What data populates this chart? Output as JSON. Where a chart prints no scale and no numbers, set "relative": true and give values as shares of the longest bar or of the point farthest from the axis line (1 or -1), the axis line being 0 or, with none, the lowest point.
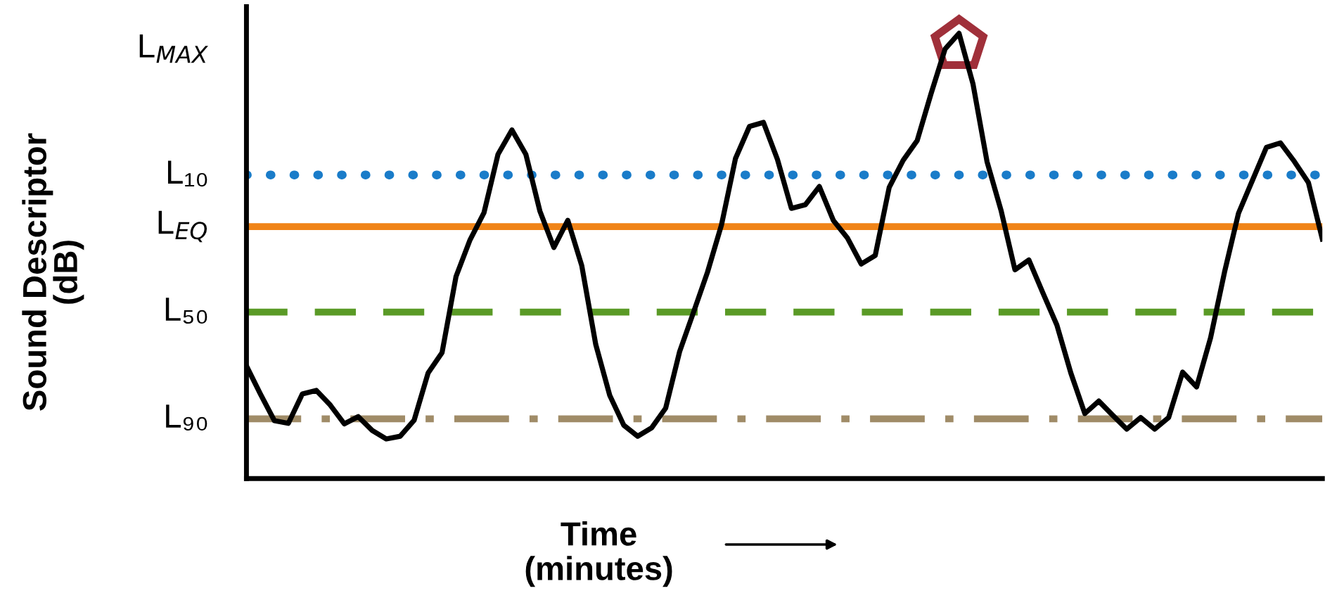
{
  "chart_data": {
    "type": "line",
    "relative": true,
    "xlabel": "Time\n(minutes)",
    "ylabel": "Sound Descriptor\n(dB)",
    "categories": [
      null,
      null,
      null,
      null,
      null,
      null,
      null,
      null,
      null,
      null,
      null,
      null,
      null,
      null,
      null,
      null,
      null,
      null,
      null,
      null,
      null,
      null,
      null,
      null,
      null,
      null,
      null,
      null,
      null,
      null,
      null,
      null,
      null,
      null,
      null,
      null,
      null,
      null,
      null,
      null,
      null,
      null,
      null,
      null,
      null,
      null,
      null,
      null,
      null,
      null,
      null,
      null,
      null,
      null,
      null,
      null,
      null,
      null,
      null,
      null,
      null,
      null,
      null,
      null,
      null,
      null,
      null,
      null,
      null,
      null,
      null,
      null,
      null,
      null,
      null,
      null,
      null,
      null
    ],
    "series": [
      {
        "color": "#000000",
        "values": [
          0.253,
          0.19,
          0.13,
          0.124,
          0.19,
          0.198,
          0.165,
          0.123,
          0.139,
          0.108,
          0.089,
          0.095,
          0.131,
          0.237,
          0.283,
          0.454,
          0.536,
          0.597,
          0.728,
          0.783,
          0.728,
          0.601,
          0.519,
          0.58,
          0.478,
          0.301,
          0.187,
          0.12,
          0.095,
          0.114,
          0.158,
          0.285,
          0.374,
          0.464,
          0.57,
          0.719,
          0.791,
          0.8,
          0.717,
          0.607,
          0.615,
          0.656,
          0.58,
          0.541,
          0.482,
          0.501,
          0.654,
          0.715,
          0.759,
          0.865,
          0.965,
          1,
          0.886,
          0.712,
          0.603,
          0.469,
          0.491,
          0.417,
          0.345,
          0.237,
          0.146,
          0.174,
          0.142,
          0.111,
          0.137,
          0.111,
          0.137,
          0.239,
          0.206,
          0.316,
          0.464,
          0.596,
          0.67,
          0.744,
          0.754,
          0.712,
          0.665,
          0.538
        ]
      }
    ],
    "ref_lines": [
      {
        "axis": "y",
        "value": 0.682,
        "label": "L₁₀",
        "color": "#1a7cc9",
        "line_style": "dotted"
      },
      {
        "axis": "y",
        "value": 0.566,
        "label": "L$_{EQ}$",
        "color": "#f08418",
        "line_style": "solid"
      },
      {
        "axis": "y",
        "value": 0.374,
        "label": "L₅₀",
        "color": "#5a9a26",
        "line_style": "dashed"
      },
      {
        "axis": "y",
        "value": 0.134,
        "label": "L₉₀",
        "color": "#a08c68",
        "line_style": "dashdot"
      }
    ],
    "annotations": [
      "L$_{MAX}$"
    ],
    "line_style": "solid",
    "marker": "none"
  }
}
